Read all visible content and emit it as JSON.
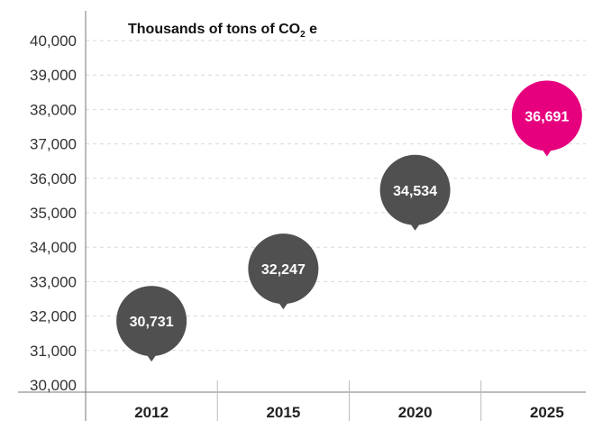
{
  "chart_data": {
    "type": "scatter",
    "title": "Thousands of tons of CO",
    "title_sub": "2",
    "title_suffix": " e",
    "categories": [
      "2012",
      "2015",
      "2020",
      "2025"
    ],
    "values": [
      30731,
      32247,
      34534,
      36691
    ],
    "value_labels": [
      "30,731",
      "32,247",
      "34,534",
      "36,691"
    ],
    "y_ticks": [
      30000,
      31000,
      32000,
      33000,
      34000,
      35000,
      36000,
      37000,
      38000,
      39000,
      40000
    ],
    "y_tick_labels": [
      "30,000",
      "31,000",
      "32,000",
      "33,000",
      "34,000",
      "35,000",
      "36,000",
      "37,000",
      "38,000",
      "39,000",
      "40,000"
    ],
    "ylim": [
      30000,
      40000
    ],
    "grid": true,
    "colors": {
      "default_marker": "#505050",
      "highlight_marker": "#e6007e",
      "grid": "#d9d9d9",
      "axis": "#777777"
    },
    "highlight_index": 3
  }
}
